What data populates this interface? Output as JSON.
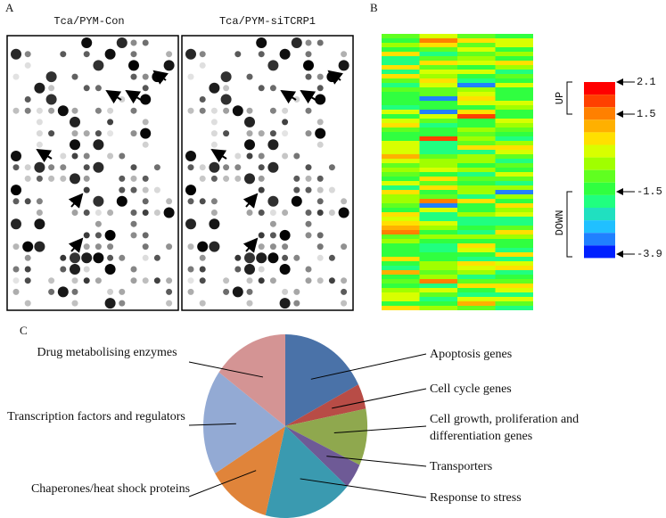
{
  "panels": {
    "a": "A",
    "b": "B",
    "c": "C"
  },
  "blots": {
    "left_title": "Tca/PYM-Con",
    "right_title": "Tca/PYM-siTCRP1"
  },
  "heatmap": {
    "up": "UP",
    "down": "DOWN",
    "colorbar_ticks": [
      2.1,
      1.5,
      -1.5,
      -3.9
    ]
  },
  "chart_data": {
    "type": "pie",
    "categories": [
      "Apoptosis genes",
      "Cell cycle genes",
      "Cell growth, proliferation and differentiation genes",
      "Transporters",
      "Response to stress",
      "Chaperones/heat shock proteins",
      "Transcription factors and regulators",
      "Drug metabolising enzymes"
    ],
    "values": [
      63,
      16,
      36,
      16,
      63,
      45,
      67,
      54
    ],
    "colors": [
      "#4a72a8",
      "#b84c46",
      "#8fa84e",
      "#6e5a96",
      "#3a9ab0",
      "#e0843a",
      "#93aad4",
      "#d49494"
    ]
  }
}
